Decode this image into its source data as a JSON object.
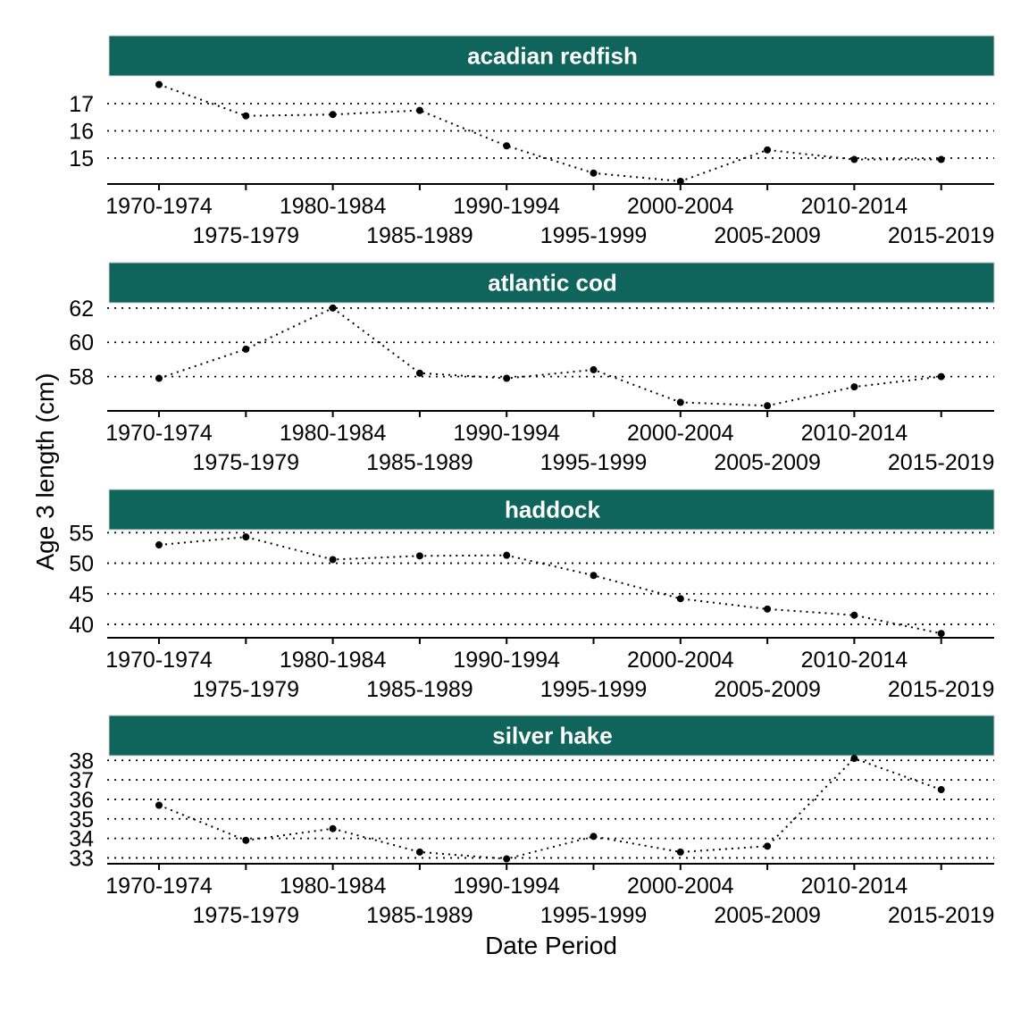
{
  "colors": {
    "strip": "#0F655C",
    "line": "#000000",
    "grid": "#000000",
    "background": "#FFFFFF"
  },
  "chart_data": {
    "type": "line",
    "xlabel": "Date Period",
    "ylabel": "Age 3 length (cm)",
    "line_style": "dotted",
    "grid": "horizontal dotted",
    "categories": [
      "1970-1974",
      "1975-1979",
      "1980-1984",
      "1985-1989",
      "1990-1994",
      "1995-1999",
      "2000-2004",
      "2005-2009",
      "2010-2014",
      "2015-2019"
    ],
    "panels": [
      {
        "title": "acadian redfish",
        "yticks": [
          15,
          16,
          17
        ],
        "ylim": [
          14.05,
          17.95
        ],
        "values": [
          17.7,
          16.55,
          16.6,
          16.75,
          15.45,
          14.45,
          14.15,
          15.3,
          14.95,
          14.95
        ]
      },
      {
        "title": "atlantic cod",
        "yticks": [
          58,
          60,
          62
        ],
        "ylim": [
          56.0,
          62.2
        ],
        "values": [
          57.9,
          59.6,
          62.0,
          58.2,
          57.9,
          58.4,
          56.5,
          56.3,
          57.4,
          58.0
        ]
      },
      {
        "title": "haddock",
        "yticks": [
          40,
          45,
          50,
          55
        ],
        "ylim": [
          37.8,
          55.2
        ],
        "values": [
          53.0,
          54.3,
          50.6,
          51.2,
          51.3,
          48.0,
          44.2,
          42.5,
          41.5,
          38.5
        ]
      },
      {
        "title": "silver hake",
        "yticks": [
          33,
          34,
          35,
          36,
          37,
          38
        ],
        "ylim": [
          32.7,
          38.15
        ],
        "values": [
          35.7,
          33.9,
          34.5,
          33.3,
          32.95,
          34.1,
          33.3,
          33.6,
          38.1,
          36.5
        ]
      }
    ]
  }
}
